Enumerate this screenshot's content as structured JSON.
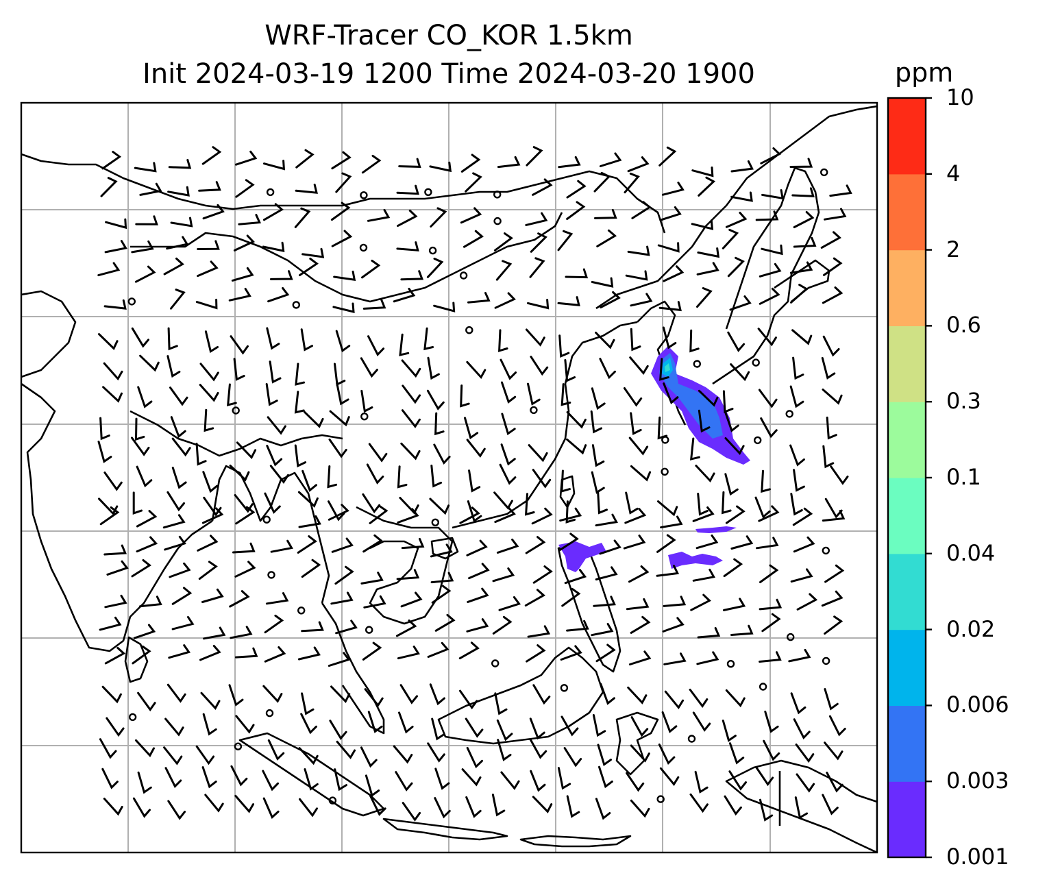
{
  "title": {
    "line1": "WRF-Tracer CO_KOR 1.5km",
    "line2": "Init 2024-03-19 1200 Time 2024-03-20 1900"
  },
  "colorbar": {
    "unit": "ppm",
    "levels": [
      "0.001",
      "0.003",
      "0.006",
      "0.02",
      "0.04",
      "0.1",
      "0.3",
      "0.6",
      "2",
      "4",
      "10"
    ],
    "colors": [
      "#6a2cfe",
      "#3374f4",
      "#00b4ec",
      "#32dcd2",
      "#6bfdc0",
      "#9cfb9c",
      "#cfe185",
      "#feb061",
      "#fe7038",
      "#fe2b16"
    ]
  },
  "map": {
    "plume_colors": [
      "#6a2cfe",
      "#3374f4",
      "#00b4ec",
      "#32dcd2"
    ],
    "coastline_color": "#000000",
    "grid_color": "#b0b0b0"
  }
}
